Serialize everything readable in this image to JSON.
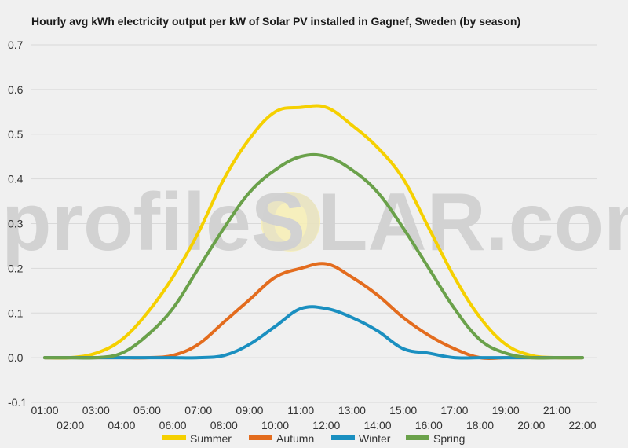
{
  "title": "Hourly avg kWh electricity output per kW of Solar PV installed in Gagnef, Sweden (by season)",
  "watermark": {
    "text_left": "profileS",
    "text_mid": "O",
    "text_right": "LAR.com"
  },
  "chart_data": {
    "type": "line",
    "title": "Hourly avg kWh electricity output per kW of Solar PV installed in Gagnef, Sweden (by season)",
    "xlabel": "",
    "ylabel": "",
    "ylim": [
      -0.1,
      0.7
    ],
    "yticks": [
      "-0.1",
      "0.0",
      "0.1",
      "0.2",
      "0.3",
      "0.4",
      "0.5",
      "0.6",
      "0.7"
    ],
    "grid": true,
    "legend_position": "bottom",
    "categories": [
      "01:00",
      "02:00",
      "03:00",
      "04:00",
      "05:00",
      "06:00",
      "07:00",
      "08:00",
      "09:00",
      "10:00",
      "11:00",
      "12:00",
      "13:00",
      "14:00",
      "15:00",
      "16:00",
      "17:00",
      "18:00",
      "19:00",
      "20:00",
      "21:00",
      "22:00"
    ],
    "series": [
      {
        "name": "Summer",
        "color": "#f5d000",
        "values": [
          0,
          0,
          0.01,
          0.04,
          0.1,
          0.18,
          0.28,
          0.4,
          0.49,
          0.55,
          0.56,
          0.56,
          0.52,
          0.47,
          0.4,
          0.29,
          0.18,
          0.09,
          0.03,
          0.005,
          0,
          0
        ]
      },
      {
        "name": "Autumn",
        "color": "#e36c1e",
        "values": [
          0,
          0,
          0,
          0,
          0,
          0.005,
          0.03,
          0.08,
          0.13,
          0.18,
          0.2,
          0.21,
          0.18,
          0.14,
          0.09,
          0.05,
          0.02,
          0,
          0,
          0,
          0,
          0
        ]
      },
      {
        "name": "Winter",
        "color": "#1a8fc0",
        "values": [
          0,
          0,
          0,
          0,
          0,
          0,
          0,
          0.005,
          0.03,
          0.07,
          0.11,
          0.11,
          0.09,
          0.06,
          0.02,
          0.01,
          0,
          0,
          0,
          0,
          0,
          0
        ]
      },
      {
        "name": "Spring",
        "color": "#6aa14a",
        "values": [
          0,
          0,
          0,
          0.01,
          0.05,
          0.11,
          0.2,
          0.29,
          0.37,
          0.42,
          0.45,
          0.45,
          0.42,
          0.37,
          0.29,
          0.2,
          0.11,
          0.04,
          0.01,
          0,
          0,
          0
        ]
      }
    ]
  }
}
